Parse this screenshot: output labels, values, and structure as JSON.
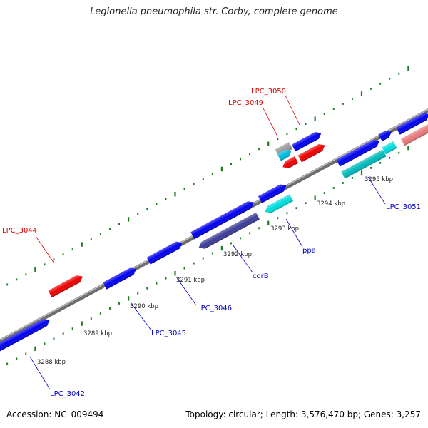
{
  "title": "Legionella pneumophila str. Corby, complete genome",
  "footer": {
    "accession": "Accession: NC_009494",
    "summary": "Topology: circular; Length: 3,576,470 bp; Genes: 3,257"
  },
  "ticks": [
    {
      "label": "3288 kbp"
    },
    {
      "label": "3289 kbp"
    },
    {
      "label": "3290 kbp"
    },
    {
      "label": "3291 kbp"
    },
    {
      "label": "3292 kbp"
    },
    {
      "label": "3293 kbp"
    },
    {
      "label": "3294 kbp"
    },
    {
      "label": "3295 kbp"
    }
  ],
  "features": [
    {
      "id": "f-3042",
      "color": "#0000ee"
    },
    {
      "id": "f-3044",
      "color": "#ee0000"
    },
    {
      "id": "f-3045",
      "color": "#0000ee"
    },
    {
      "id": "f-3046",
      "color": "#0000ee"
    },
    {
      "id": "f-corB-a",
      "color": "#0000ee"
    },
    {
      "id": "f-corB-b",
      "color": "#3c3c96"
    },
    {
      "id": "f-ppa-a",
      "color": "#0000ee"
    },
    {
      "id": "f-ppa-b",
      "color": "#00dddd"
    },
    {
      "id": "f-3049-a",
      "color": "#999999"
    },
    {
      "id": "f-3049-b",
      "color": "#00bbdd"
    },
    {
      "id": "f-3049-c",
      "color": "#ee0000"
    },
    {
      "id": "f-3050-a",
      "color": "#0000ee"
    },
    {
      "id": "f-3050-b",
      "color": "#ee0000"
    },
    {
      "id": "f-3051-a",
      "color": "#0000ee"
    },
    {
      "id": "f-3051-b",
      "color": "#00bbbb"
    },
    {
      "id": "f-3051-c",
      "color": "#0000ee"
    },
    {
      "id": "f-3051-d",
      "color": "#00dddd"
    },
    {
      "id": "f-right-a",
      "color": "#0000ee"
    },
    {
      "id": "f-right-b",
      "color": "#e87a7a"
    }
  ],
  "labels": [
    {
      "text": "LPC_3042",
      "color": "#0000cc"
    },
    {
      "text": "LPC_3044",
      "color": "#dd0000"
    },
    {
      "text": "LPC_3045",
      "color": "#0000cc"
    },
    {
      "text": "LPC_3046",
      "color": "#0000cc"
    },
    {
      "text": "corB",
      "color": "#0000cc"
    },
    {
      "text": "ppa",
      "color": "#0000cc"
    },
    {
      "text": "LPC_3049",
      "color": "#dd0000"
    },
    {
      "text": "LPC_3050",
      "color": "#dd0000"
    },
    {
      "text": "LPC_3051",
      "color": "#0000cc"
    }
  ],
  "colors": {
    "backbone": "#8a8a8a",
    "ticks": "#1e7a1e",
    "tick_label": "#222222"
  }
}
